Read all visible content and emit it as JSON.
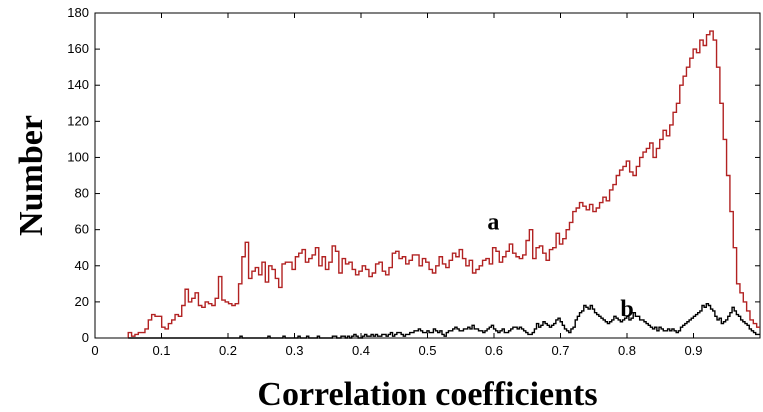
{
  "chart_data": {
    "type": "histogram",
    "xlabel": "Correlation coefficients",
    "ylabel": "Number",
    "xlim": [
      0,
      1
    ],
    "ylim": [
      0,
      180
    ],
    "xticks": [
      "0",
      "0.1",
      "0.2",
      "0.3",
      "0.4",
      "0.5",
      "0.6",
      "0.7",
      "0.8",
      "0.9"
    ],
    "yticks": [
      "0",
      "20",
      "40",
      "60",
      "80",
      "100",
      "120",
      "140",
      "160",
      "180"
    ],
    "grid": false,
    "bin_start": 0.05,
    "bin_width": 0.005,
    "series": [
      {
        "name": "a",
        "color": "#b22222",
        "label_at": [
          0.59,
          60
        ],
        "values": [
          3,
          1,
          2,
          3,
          3,
          5,
          10,
          13,
          12,
          12,
          6,
          5,
          8,
          10,
          13,
          12,
          18,
          27,
          20,
          22,
          25,
          18,
          17,
          20,
          19,
          18,
          22,
          34,
          21,
          20,
          19,
          18,
          19,
          30,
          45,
          53,
          33,
          37,
          39,
          35,
          42,
          31,
          40,
          38,
          33,
          28,
          41,
          42,
          42,
          38,
          45,
          47,
          49,
          42,
          44,
          46,
          50,
          40,
          45,
          38,
          42,
          51,
          48,
          36,
          44,
          41,
          42,
          38,
          35,
          37,
          40,
          38,
          34,
          36,
          41,
          42,
          37,
          35,
          39,
          47,
          48,
          44,
          45,
          41,
          43,
          46,
          46,
          40,
          44,
          42,
          38,
          36,
          40,
          45,
          41,
          39,
          43,
          47,
          45,
          49,
          44,
          40,
          43,
          36,
          38,
          40,
          43,
          44,
          41,
          50,
          48,
          42,
          45,
          48,
          52,
          47,
          45,
          44,
          46,
          54,
          60,
          44,
          50,
          51,
          47,
          43,
          49,
          50,
          58,
          52,
          55,
          60,
          64,
          70,
          72,
          75,
          73,
          71,
          74,
          70,
          72,
          75,
          78,
          76,
          82,
          85,
          90,
          93,
          95,
          98,
          92,
          90,
          95,
          100,
          103,
          105,
          108,
          100,
          105,
          110,
          115,
          112,
          118,
          125,
          130,
          140,
          145,
          150,
          155,
          160,
          158,
          165,
          162,
          168,
          170,
          165,
          150,
          130,
          110,
          90,
          70,
          50,
          30,
          25,
          20,
          15,
          10,
          8,
          6
        ]
      },
      {
        "name": "b",
        "color": "#000000",
        "label_at": [
          0.79,
          12
        ],
        "values": [
          0,
          0,
          0,
          0,
          0,
          0,
          0,
          0,
          0,
          0,
          0,
          0,
          0,
          0,
          0,
          0,
          0,
          0,
          0,
          0,
          0,
          0,
          0,
          0,
          0,
          0,
          0,
          0,
          0,
          0,
          0,
          0,
          0,
          0,
          0,
          0,
          0,
          0,
          0,
          0,
          0,
          0,
          0,
          0,
          0,
          0,
          0,
          0,
          0,
          0,
          0,
          0,
          1,
          0,
          0,
          0,
          0,
          0,
          0,
          0,
          0,
          0,
          0,
          0,
          0,
          1,
          0,
          0,
          0,
          0,
          0,
          0,
          1,
          0,
          0,
          0,
          0,
          0,
          0,
          1,
          0,
          0,
          0,
          1,
          0,
          0,
          0,
          0,
          1,
          0,
          0,
          0,
          0,
          0,
          0,
          1,
          1,
          0,
          0,
          1,
          1,
          0,
          1,
          0,
          1,
          2,
          1,
          0,
          0,
          1,
          2,
          1,
          1,
          2,
          1,
          2,
          1,
          1,
          2,
          2,
          1,
          2,
          3,
          1,
          2,
          3,
          3,
          2,
          1,
          2,
          2,
          3,
          3,
          4,
          4,
          5,
          4,
          3,
          3,
          4,
          3,
          3,
          5,
          4,
          3,
          4,
          2,
          1,
          3,
          4,
          4,
          5,
          6,
          5,
          4,
          4,
          5,
          5,
          6,
          5,
          7,
          5,
          5,
          4,
          4,
          3,
          4,
          5,
          6,
          7,
          5,
          4,
          3,
          4,
          5,
          3,
          3,
          4,
          5,
          6,
          6,
          5,
          6,
          5,
          4,
          3,
          2,
          2,
          3,
          5,
          8,
          6,
          7,
          9,
          8,
          7,
          6,
          7,
          8,
          10,
          11,
          9,
          7,
          5,
          4,
          3,
          5,
          6,
          10,
          12,
          14,
          15,
          18,
          17,
          16,
          18,
          16,
          14,
          13,
          12,
          11,
          10,
          9,
          8,
          9,
          10,
          12,
          11,
          10,
          9,
          10,
          11,
          12,
          10,
          11,
          14,
          12,
          12,
          10,
          10,
          9,
          8,
          7,
          6,
          5,
          6,
          4,
          6,
          5,
          4,
          4,
          5,
          4,
          5,
          4,
          3,
          4,
          6,
          7,
          8,
          9,
          10,
          11,
          12,
          13,
          14,
          15,
          18,
          17,
          19,
          18,
          16,
          15,
          12,
          10,
          11,
          8,
          9,
          10,
          12,
          14,
          17,
          15,
          13,
          12,
          10,
          9,
          8,
          7,
          5,
          4,
          3,
          2,
          2
        ]
      }
    ]
  }
}
